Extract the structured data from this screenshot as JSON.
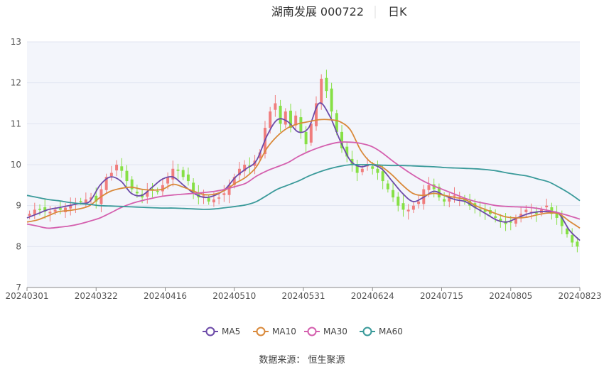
{
  "header": {
    "title": "湖南发展 000722",
    "period": "日K"
  },
  "source_label": "数据来源：  恒生聚源",
  "colors": {
    "up": "#f07d7d",
    "down": "#86e045",
    "plot_bg": "#f3f5fb",
    "grid": "#e1e5f0"
  },
  "chart_data": {
    "type": "candlestick",
    "title": "湖南发展 000722",
    "ylim": [
      7,
      13
    ],
    "yticks": [
      7,
      8,
      9,
      10,
      11,
      12,
      13
    ],
    "x_ticks": [
      "20240301",
      "20240322",
      "20240416",
      "20240510",
      "20240531",
      "20240624",
      "20240715",
      "20240805",
      "20240823"
    ],
    "legend_position": "bottom-center",
    "grid": true,
    "candle_close_approx": [
      8.8,
      8.9,
      8.9,
      8.85,
      8.85,
      8.9,
      8.9,
      8.95,
      9.0,
      9.05,
      9.1,
      9.15,
      9.2,
      9.1,
      9.4,
      9.7,
      9.8,
      10.0,
      9.85,
      9.6,
      9.4,
      9.3,
      9.2,
      9.35,
      9.4,
      9.35,
      9.5,
      9.7,
      9.9,
      9.85,
      9.7,
      9.6,
      9.3,
      9.2,
      9.25,
      9.1,
      9.15,
      9.2,
      9.3,
      9.5,
      9.7,
      9.9,
      10.0,
      9.95,
      10.1,
      10.3,
      10.9,
      11.3,
      11.5,
      11.0,
      11.3,
      10.9,
      11.2,
      10.8,
      10.5,
      11.0,
      11.5,
      12.1,
      11.8,
      11.3,
      10.8,
      10.4,
      10.2,
      10.0,
      9.8,
      9.9,
      10.0,
      9.9,
      9.8,
      9.6,
      9.4,
      9.2,
      9.0,
      8.9,
      8.9,
      9.0,
      9.1,
      9.4,
      9.5,
      9.4,
      9.2,
      9.1,
      9.2,
      9.25,
      9.2,
      9.1,
      9.0,
      8.95,
      8.9,
      8.85,
      8.8,
      8.7,
      8.6,
      8.55,
      8.6,
      8.7,
      8.8,
      8.9,
      8.85,
      8.8,
      8.9,
      9.0,
      8.8,
      8.7,
      8.5,
      8.3,
      8.1,
      8.0
    ],
    "series": [
      {
        "name": "MA5",
        "color": "#6c4aa8",
        "values": [
          8.7,
          8.8,
          8.9,
          8.95,
          9.0,
          9.05,
          9.1,
          9.5,
          9.7,
          9.6,
          9.3,
          9.25,
          9.45,
          9.65,
          9.7,
          9.5,
          9.3,
          9.2,
          9.25,
          9.4,
          9.7,
          9.9,
          10.1,
          10.7,
          11.1,
          11.05,
          10.8,
          10.9,
          11.5,
          11.2,
          10.6,
          10.1,
          9.95,
          10.0,
          9.9,
          9.6,
          9.3,
          9.1,
          9.2,
          9.35,
          9.25,
          9.15,
          9.1,
          8.95,
          8.8,
          8.65,
          8.6,
          8.7,
          8.8,
          8.85,
          8.85,
          8.8,
          8.4,
          8.15
        ]
      },
      {
        "name": "MA10",
        "color": "#d9893a",
        "values": [
          8.6,
          8.65,
          8.75,
          8.85,
          8.88,
          8.92,
          9.0,
          9.2,
          9.35,
          9.42,
          9.45,
          9.4,
          9.38,
          9.4,
          9.52,
          9.45,
          9.35,
          9.27,
          9.28,
          9.38,
          9.55,
          9.7,
          9.95,
          10.4,
          10.7,
          10.9,
          11.0,
          11.05,
          11.1,
          11.1,
          11.05,
          10.85,
          10.35,
          10.05,
          9.95,
          9.75,
          9.5,
          9.3,
          9.25,
          9.3,
          9.25,
          9.2,
          9.15,
          9.0,
          8.9,
          8.8,
          8.72,
          8.7,
          8.72,
          8.78,
          8.82,
          8.8,
          8.62,
          8.45
        ]
      },
      {
        "name": "MA30",
        "color": "#d45fae",
        "values": [
          8.55,
          8.5,
          8.45,
          8.47,
          8.5,
          8.55,
          8.62,
          8.7,
          8.82,
          8.95,
          9.05,
          9.12,
          9.18,
          9.23,
          9.26,
          9.28,
          9.3,
          9.32,
          9.35,
          9.4,
          9.47,
          9.55,
          9.72,
          9.85,
          9.95,
          10.05,
          10.2,
          10.32,
          10.42,
          10.5,
          10.55,
          10.55,
          10.52,
          10.45,
          10.3,
          10.1,
          9.92,
          9.75,
          9.6,
          9.48,
          9.38,
          9.28,
          9.18,
          9.1,
          9.05,
          9.0,
          8.98,
          8.97,
          8.96,
          8.93,
          8.88,
          8.82,
          8.75,
          8.67
        ]
      },
      {
        "name": "MA60",
        "color": "#3a9a9a",
        "values": [
          9.25,
          9.2,
          9.15,
          9.12,
          9.08,
          9.05,
          9.03,
          9.0,
          8.99,
          8.98,
          8.97,
          8.96,
          8.95,
          8.94,
          8.94,
          8.93,
          8.92,
          8.91,
          8.92,
          8.95,
          8.98,
          9.02,
          9.1,
          9.25,
          9.4,
          9.5,
          9.6,
          9.72,
          9.82,
          9.9,
          9.96,
          10.0,
          10.0,
          10.0,
          9.99,
          9.98,
          9.98,
          9.97,
          9.96,
          9.95,
          9.93,
          9.92,
          9.91,
          9.9,
          9.88,
          9.85,
          9.8,
          9.76,
          9.72,
          9.65,
          9.58,
          9.45,
          9.3,
          9.12
        ]
      }
    ]
  }
}
